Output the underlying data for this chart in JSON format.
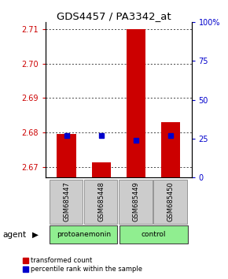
{
  "title": "GDS4457 / PA3342_at",
  "samples": [
    "GSM685447",
    "GSM685448",
    "GSM685449",
    "GSM685450"
  ],
  "red_values": [
    2.6795,
    2.6712,
    2.71,
    2.683
  ],
  "blue_values": [
    2.6792,
    2.6792,
    2.6778,
    2.6792
  ],
  "ylim_left": [
    2.667,
    2.712
  ],
  "ylim_right": [
    0,
    100
  ],
  "yticks_left": [
    2.67,
    2.68,
    2.69,
    2.7,
    2.71
  ],
  "yticks_right": [
    0,
    25,
    50,
    75,
    100
  ],
  "bar_bottom": 2.667,
  "bar_width": 0.55,
  "left_color": "#cc0000",
  "blue_color": "#0000cc",
  "left_label": "transformed count",
  "right_label": "percentile rank within the sample",
  "group_green": "#90EE90",
  "sample_box_color": "#cccccc"
}
